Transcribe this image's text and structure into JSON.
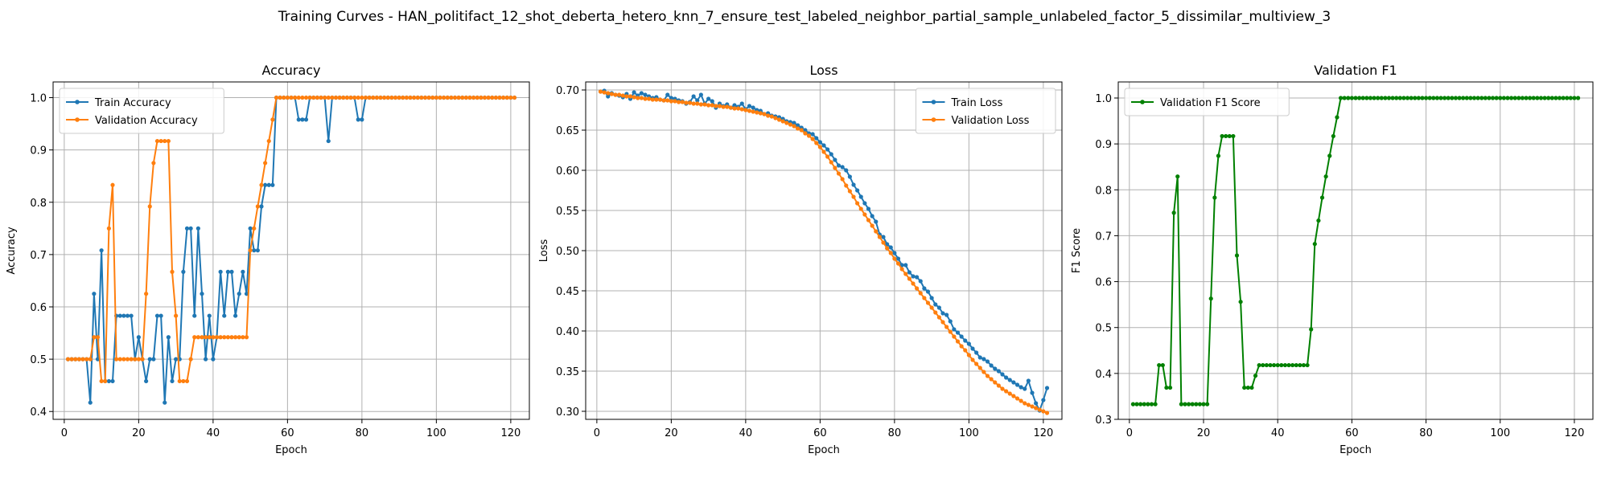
{
  "figure": {
    "suptitle": "Training Curves - HAN_politifact_12_shot_deberta_hetero_knn_7_ensure_test_labeled_neighbor_partial_sample_unlabeled_factor_5_dissimilar_multiview_3"
  },
  "colors": {
    "blue": "#1f77b4",
    "orange": "#ff7f0e",
    "green": "#008000",
    "grid": "#b0b0b0"
  },
  "chart_data": [
    {
      "type": "line",
      "title": "Accuracy",
      "xlabel": "Epoch",
      "ylabel": "Accuracy",
      "xlim": [
        -3,
        125
      ],
      "ylim": [
        0.385,
        1.03
      ],
      "xticks": [
        0,
        20,
        40,
        60,
        80,
        100,
        120
      ],
      "yticks": [
        0.4,
        0.5,
        0.6,
        0.7,
        0.8,
        0.9,
        1.0
      ],
      "grid": true,
      "legend": "top-left",
      "series": [
        {
          "name": "Train Accuracy",
          "color": "#1f77b4",
          "x_start": 1,
          "values": [
            0.5,
            0.5,
            0.5,
            0.5,
            0.5,
            0.5,
            0.417,
            0.625,
            0.5,
            0.708,
            0.458,
            0.458,
            0.458,
            0.583,
            0.583,
            0.583,
            0.583,
            0.583,
            0.5,
            0.542,
            0.5,
            0.458,
            0.5,
            0.5,
            0.583,
            0.583,
            0.417,
            0.542,
            0.458,
            0.5,
            0.5,
            0.667,
            0.75,
            0.75,
            0.583,
            0.75,
            0.625,
            0.5,
            0.583,
            0.5,
            0.542,
            0.667,
            0.583,
            0.667,
            0.667,
            0.583,
            0.625,
            0.667,
            0.625,
            0.75,
            0.708,
            0.708,
            0.792,
            0.833,
            0.833,
            0.833,
            1.0,
            1.0,
            1.0,
            1.0,
            1.0,
            1.0,
            0.958,
            0.958,
            0.958,
            1.0,
            1.0,
            1.0,
            1.0,
            1.0,
            0.917,
            1.0,
            1.0,
            1.0,
            1.0,
            1.0,
            1.0,
            1.0,
            0.958,
            0.958,
            1.0,
            1.0,
            1.0,
            1.0,
            1.0,
            1.0,
            1.0,
            1.0,
            1.0,
            1.0,
            1.0,
            1.0,
            1.0,
            1.0,
            1.0,
            1.0,
            1.0,
            1.0,
            1.0,
            1.0,
            1.0,
            1.0,
            1.0,
            1.0,
            1.0,
            1.0,
            1.0,
            1.0,
            1.0,
            1.0,
            1.0,
            1.0,
            1.0,
            1.0,
            1.0,
            1.0,
            1.0,
            1.0,
            1.0,
            1.0,
            1.0
          ]
        },
        {
          "name": "Validation Accuracy",
          "color": "#ff7f0e",
          "x_start": 1,
          "values": [
            0.5,
            0.5,
            0.5,
            0.5,
            0.5,
            0.5,
            0.5,
            0.542,
            0.542,
            0.458,
            0.458,
            0.75,
            0.833,
            0.5,
            0.5,
            0.5,
            0.5,
            0.5,
            0.5,
            0.5,
            0.5,
            0.625,
            0.792,
            0.875,
            0.917,
            0.917,
            0.917,
            0.917,
            0.667,
            0.583,
            0.458,
            0.458,
            0.458,
            0.5,
            0.542,
            0.542,
            0.542,
            0.542,
            0.542,
            0.542,
            0.542,
            0.542,
            0.542,
            0.542,
            0.542,
            0.542,
            0.542,
            0.542,
            0.542,
            0.708,
            0.75,
            0.792,
            0.833,
            0.875,
            0.917,
            0.958,
            1.0,
            1.0,
            1.0,
            1.0,
            1.0,
            1.0,
            1.0,
            1.0,
            1.0,
            1.0,
            1.0,
            1.0,
            1.0,
            1.0,
            1.0,
            1.0,
            1.0,
            1.0,
            1.0,
            1.0,
            1.0,
            1.0,
            1.0,
            1.0,
            1.0,
            1.0,
            1.0,
            1.0,
            1.0,
            1.0,
            1.0,
            1.0,
            1.0,
            1.0,
            1.0,
            1.0,
            1.0,
            1.0,
            1.0,
            1.0,
            1.0,
            1.0,
            1.0,
            1.0,
            1.0,
            1.0,
            1.0,
            1.0,
            1.0,
            1.0,
            1.0,
            1.0,
            1.0,
            1.0,
            1.0,
            1.0,
            1.0,
            1.0,
            1.0,
            1.0,
            1.0,
            1.0,
            1.0,
            1.0,
            1.0
          ]
        }
      ]
    },
    {
      "type": "line",
      "title": "Loss",
      "xlabel": "Epoch",
      "ylabel": "Loss",
      "xlim": [
        -3,
        125
      ],
      "ylim": [
        0.29,
        0.71
      ],
      "xticks": [
        0,
        20,
        40,
        60,
        80,
        100,
        120
      ],
      "yticks": [
        0.3,
        0.35,
        0.4,
        0.45,
        0.5,
        0.55,
        0.6,
        0.65,
        0.7
      ],
      "grid": true,
      "legend": "top-right",
      "series": [
        {
          "name": "Train Loss",
          "color": "#1f77b4",
          "x_start": 1,
          "values": [
            0.698,
            0.699,
            0.692,
            0.696,
            0.694,
            0.693,
            0.691,
            0.695,
            0.689,
            0.697,
            0.693,
            0.696,
            0.694,
            0.692,
            0.69,
            0.691,
            0.688,
            0.687,
            0.694,
            0.69,
            0.689,
            0.687,
            0.686,
            0.683,
            0.685,
            0.692,
            0.687,
            0.694,
            0.683,
            0.689,
            0.686,
            0.678,
            0.683,
            0.68,
            0.682,
            0.678,
            0.681,
            0.679,
            0.683,
            0.676,
            0.68,
            0.678,
            0.675,
            0.674,
            0.67,
            0.671,
            0.668,
            0.667,
            0.666,
            0.664,
            0.661,
            0.66,
            0.659,
            0.656,
            0.653,
            0.65,
            0.646,
            0.645,
            0.64,
            0.635,
            0.631,
            0.626,
            0.62,
            0.613,
            0.606,
            0.604,
            0.6,
            0.592,
            0.582,
            0.575,
            0.567,
            0.559,
            0.552,
            0.543,
            0.536,
            0.52,
            0.517,
            0.508,
            0.504,
            0.497,
            0.49,
            0.482,
            0.482,
            0.473,
            0.468,
            0.467,
            0.462,
            0.453,
            0.449,
            0.441,
            0.433,
            0.429,
            0.422,
            0.42,
            0.412,
            0.402,
            0.398,
            0.393,
            0.388,
            0.384,
            0.378,
            0.373,
            0.367,
            0.365,
            0.362,
            0.357,
            0.353,
            0.35,
            0.346,
            0.342,
            0.339,
            0.336,
            0.333,
            0.33,
            0.328,
            0.338,
            0.323,
            0.31,
            0.301,
            0.314,
            0.329
          ]
        },
        {
          "name": "Validation Loss",
          "color": "#ff7f0e",
          "x_start": 1,
          "values": [
            0.698,
            0.697,
            0.696,
            0.695,
            0.694,
            0.694,
            0.693,
            0.692,
            0.692,
            0.691,
            0.69,
            0.69,
            0.689,
            0.689,
            0.688,
            0.688,
            0.688,
            0.687,
            0.687,
            0.686,
            0.686,
            0.685,
            0.685,
            0.684,
            0.684,
            0.683,
            0.683,
            0.682,
            0.682,
            0.681,
            0.681,
            0.68,
            0.68,
            0.679,
            0.679,
            0.678,
            0.677,
            0.677,
            0.676,
            0.675,
            0.674,
            0.673,
            0.672,
            0.671,
            0.67,
            0.668,
            0.667,
            0.665,
            0.663,
            0.661,
            0.659,
            0.657,
            0.655,
            0.652,
            0.65,
            0.646,
            0.643,
            0.639,
            0.634,
            0.629,
            0.623,
            0.617,
            0.61,
            0.603,
            0.596,
            0.589,
            0.581,
            0.574,
            0.567,
            0.559,
            0.552,
            0.545,
            0.538,
            0.531,
            0.524,
            0.517,
            0.51,
            0.503,
            0.497,
            0.49,
            0.484,
            0.477,
            0.471,
            0.465,
            0.459,
            0.453,
            0.447,
            0.441,
            0.435,
            0.429,
            0.423,
            0.417,
            0.411,
            0.405,
            0.399,
            0.393,
            0.387,
            0.381,
            0.376,
            0.37,
            0.364,
            0.359,
            0.354,
            0.349,
            0.344,
            0.34,
            0.336,
            0.332,
            0.328,
            0.325,
            0.322,
            0.319,
            0.316,
            0.313,
            0.31,
            0.308,
            0.306,
            0.304,
            0.302,
            0.3,
            0.298
          ]
        }
      ]
    },
    {
      "type": "line",
      "title": "Validation F1",
      "xlabel": "Epoch",
      "ylabel": "F1 Score",
      "xlim": [
        -3,
        125
      ],
      "ylim": [
        0.3,
        1.035
      ],
      "xticks": [
        0,
        20,
        40,
        60,
        80,
        100,
        120
      ],
      "yticks": [
        0.3,
        0.4,
        0.5,
        0.6,
        0.7,
        0.8,
        0.9,
        1.0
      ],
      "grid": true,
      "legend": "top-left",
      "series": [
        {
          "name": "Validation F1 Score",
          "color": "#008000",
          "x_start": 1,
          "values": [
            0.333,
            0.333,
            0.333,
            0.333,
            0.333,
            0.333,
            0.333,
            0.418,
            0.418,
            0.369,
            0.369,
            0.75,
            0.829,
            0.333,
            0.333,
            0.333,
            0.333,
            0.333,
            0.333,
            0.333,
            0.333,
            0.563,
            0.783,
            0.874,
            0.917,
            0.917,
            0.917,
            0.917,
            0.657,
            0.556,
            0.369,
            0.369,
            0.369,
            0.395,
            0.418,
            0.418,
            0.418,
            0.418,
            0.418,
            0.418,
            0.418,
            0.418,
            0.418,
            0.418,
            0.418,
            0.418,
            0.418,
            0.418,
            0.496,
            0.682,
            0.733,
            0.783,
            0.829,
            0.874,
            0.917,
            0.958,
            1.0,
            1.0,
            1.0,
            1.0,
            1.0,
            1.0,
            1.0,
            1.0,
            1.0,
            1.0,
            1.0,
            1.0,
            1.0,
            1.0,
            1.0,
            1.0,
            1.0,
            1.0,
            1.0,
            1.0,
            1.0,
            1.0,
            1.0,
            1.0,
            1.0,
            1.0,
            1.0,
            1.0,
            1.0,
            1.0,
            1.0,
            1.0,
            1.0,
            1.0,
            1.0,
            1.0,
            1.0,
            1.0,
            1.0,
            1.0,
            1.0,
            1.0,
            1.0,
            1.0,
            1.0,
            1.0,
            1.0,
            1.0,
            1.0,
            1.0,
            1.0,
            1.0,
            1.0,
            1.0,
            1.0,
            1.0,
            1.0,
            1.0,
            1.0,
            1.0,
            1.0,
            1.0,
            1.0,
            1.0,
            1.0
          ]
        }
      ]
    }
  ]
}
